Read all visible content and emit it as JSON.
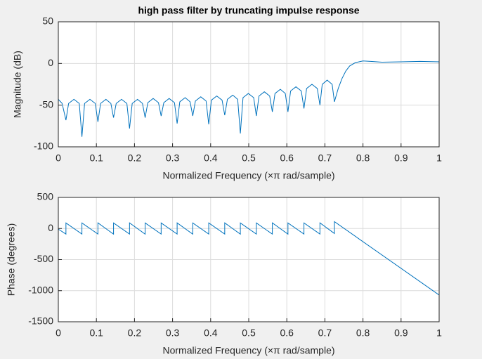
{
  "chart_data": [
    {
      "type": "line",
      "title": "high pass filter by truncating impulse response",
      "xlabel": "Normalized Frequency  (×π rad/sample)",
      "ylabel": "Magnitude (dB)",
      "color": "#0072bd",
      "grid": true,
      "xlim": [
        0,
        1
      ],
      "xticks": [
        0,
        0.1,
        0.2,
        0.3,
        0.4,
        0.5,
        0.6,
        0.7,
        0.8,
        0.9,
        1
      ],
      "ylim": [
        -100,
        50
      ],
      "yticks": [
        -100,
        -50,
        0,
        50
      ],
      "x": [
        0,
        0.01,
        0.02,
        0.027,
        0.041,
        0.055,
        0.062,
        0.069,
        0.083,
        0.097,
        0.104,
        0.111,
        0.125,
        0.138,
        0.145,
        0.152,
        0.166,
        0.18,
        0.187,
        0.194,
        0.208,
        0.221,
        0.228,
        0.235,
        0.249,
        0.263,
        0.27,
        0.277,
        0.291,
        0.305,
        0.312,
        0.319,
        0.333,
        0.346,
        0.353,
        0.36,
        0.374,
        0.388,
        0.395,
        0.402,
        0.416,
        0.43,
        0.437,
        0.444,
        0.458,
        0.471,
        0.478,
        0.485,
        0.499,
        0.513,
        0.52,
        0.527,
        0.541,
        0.555,
        0.562,
        0.569,
        0.583,
        0.596,
        0.603,
        0.61,
        0.624,
        0.638,
        0.645,
        0.652,
        0.666,
        0.68,
        0.687,
        0.693,
        0.706,
        0.719,
        0.725,
        0.735,
        0.745,
        0.755,
        0.765,
        0.78,
        0.8,
        0.82,
        0.85,
        0.9,
        0.95,
        1
      ],
      "values": [
        -43,
        -48,
        -68,
        -48,
        -43,
        -48,
        -88,
        -48,
        -43,
        -48,
        -70,
        -48,
        -43,
        -48,
        -65,
        -48,
        -43,
        -48,
        -78,
        -48,
        -43,
        -48,
        -65,
        -47,
        -42,
        -47,
        -63,
        -47,
        -42,
        -47,
        -72,
        -46,
        -41,
        -46,
        -63,
        -45,
        -40,
        -45,
        -73,
        -44,
        -39,
        -44,
        -62,
        -43,
        -38,
        -43,
        -84,
        -41,
        -36,
        -41,
        -63,
        -39,
        -34,
        -39,
        -58,
        -36,
        -31,
        -36,
        -58,
        -33,
        -28,
        -33,
        -54,
        -30,
        -25,
        -30,
        -50,
        -25,
        -20,
        -25,
        -46,
        -30,
        -18,
        -9,
        -3,
        1,
        3,
        2.5,
        1.5,
        2,
        2.5,
        2
      ]
    },
    {
      "type": "line",
      "xlabel": "Normalized Frequency  (×π rad/sample)",
      "ylabel": "Phase (degrees)",
      "color": "#0072bd",
      "grid": true,
      "xlim": [
        0,
        1
      ],
      "xticks": [
        0,
        0.1,
        0.2,
        0.3,
        0.4,
        0.5,
        0.6,
        0.7,
        0.8,
        0.9,
        1
      ],
      "ylim": [
        -1500,
        500
      ],
      "yticks": [
        -1500,
        -1000,
        -500,
        0,
        500
      ],
      "x": [
        0,
        0.02,
        0.02,
        0.062,
        0.062,
        0.104,
        0.104,
        0.145,
        0.145,
        0.187,
        0.187,
        0.228,
        0.228,
        0.27,
        0.27,
        0.312,
        0.312,
        0.353,
        0.353,
        0.395,
        0.395,
        0.437,
        0.437,
        0.478,
        0.478,
        0.52,
        0.52,
        0.562,
        0.562,
        0.603,
        0.603,
        0.645,
        0.645,
        0.687,
        0.687,
        0.725,
        0.725,
        1
      ],
      "values": [
        -10,
        -90,
        90,
        -90,
        90,
        -90,
        90,
        -90,
        90,
        -90,
        90,
        -90,
        90,
        -90,
        90,
        -90,
        90,
        -90,
        90,
        -90,
        90,
        -90,
        90,
        -90,
        90,
        -90,
        90,
        -90,
        90,
        -90,
        90,
        -90,
        90,
        -90,
        90,
        -80,
        110,
        -1070
      ]
    }
  ]
}
